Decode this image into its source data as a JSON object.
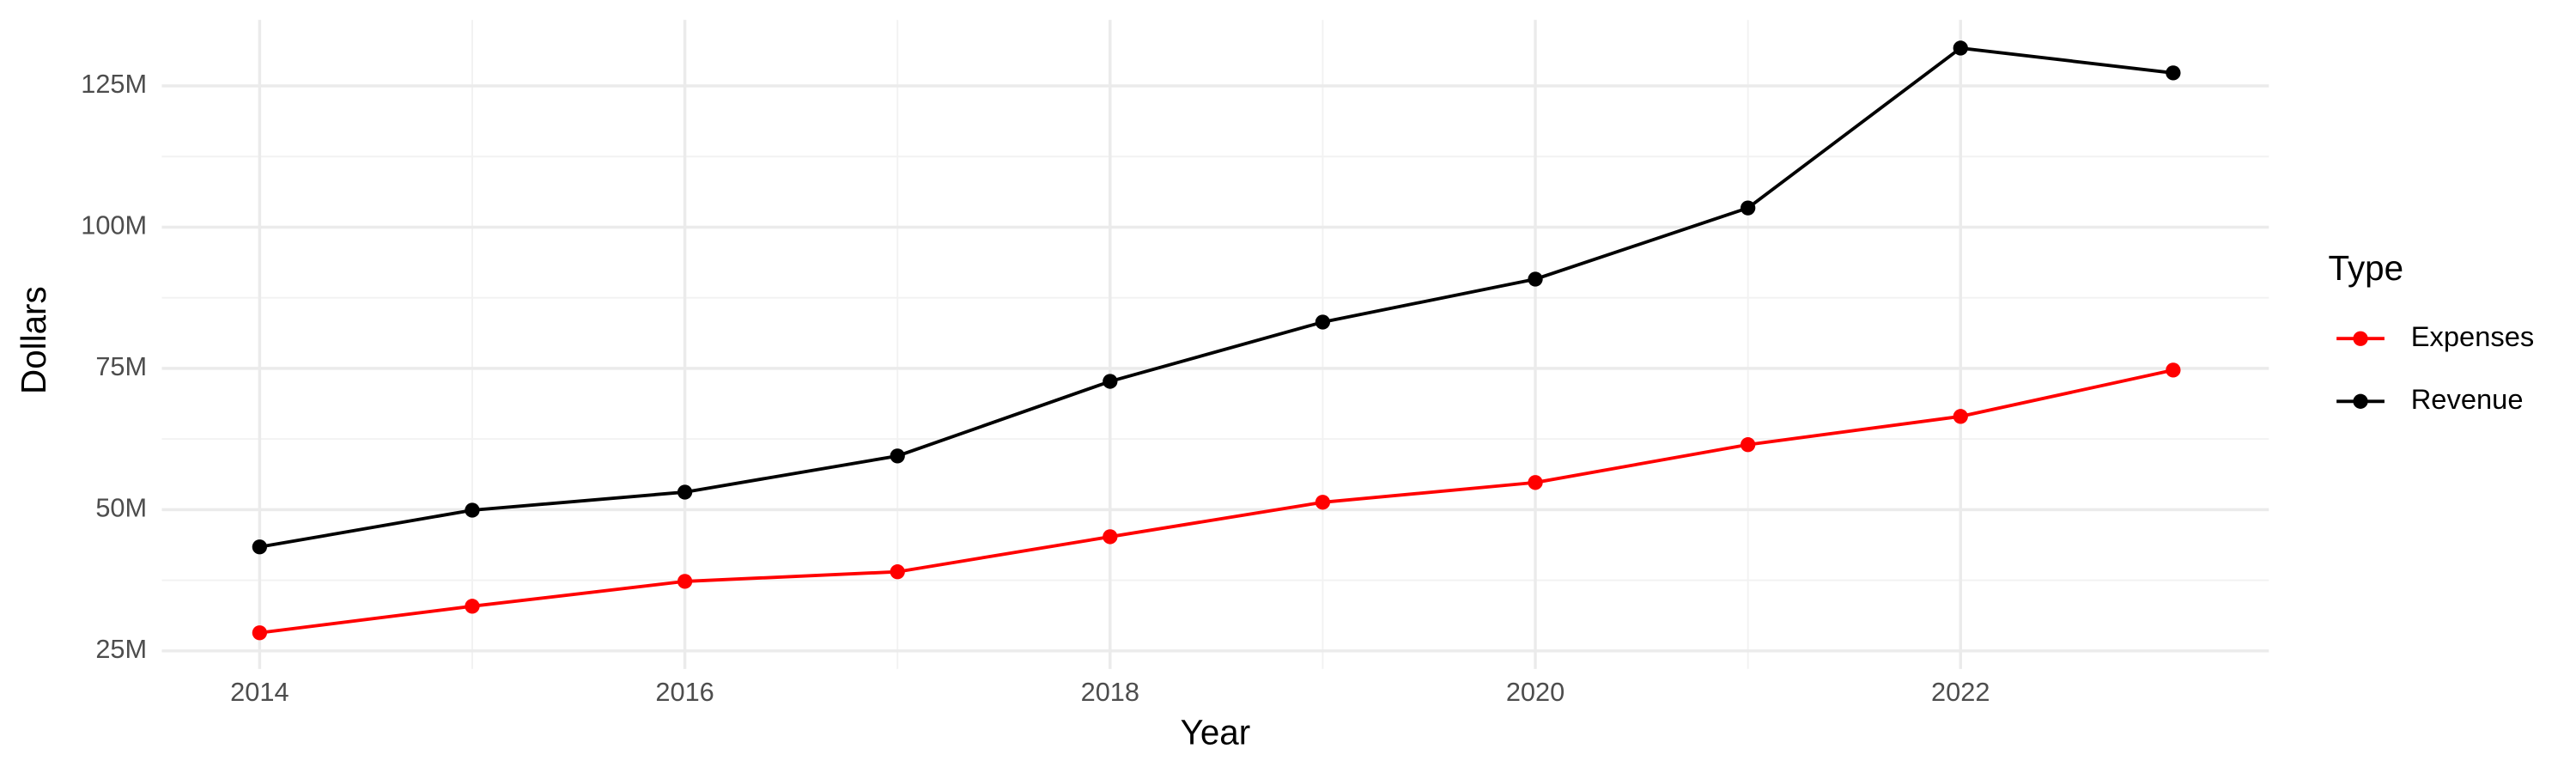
{
  "chart_data": {
    "type": "line",
    "x_label": "Year",
    "y_label": "Dollars",
    "legend_title": "Type",
    "legend_position": "right",
    "grid": true,
    "x": [
      2014,
      2015,
      2016,
      2017,
      2018,
      2019,
      2020,
      2021,
      2022,
      2023
    ],
    "series": [
      {
        "name": "Expenses",
        "color": "#ff0000",
        "values": [
          28200000,
          32900000,
          37300000,
          39000000,
          45200000,
          51300000,
          54800000,
          61500000,
          66500000,
          74700000
        ]
      },
      {
        "name": "Revenue",
        "color": "#000000",
        "values": [
          43400000,
          49900000,
          53100000,
          59500000,
          72700000,
          83200000,
          90800000,
          103400000,
          131700000,
          127300000
        ]
      }
    ],
    "xlim": [
      2013.54,
      2023.45
    ],
    "xticks": [
      2014,
      2016,
      2018,
      2020,
      2022
    ],
    "ylim": [
      21800000,
      136700000
    ],
    "yticks": [
      {
        "value": 25000000,
        "label": "25M"
      },
      {
        "value": 50000000,
        "label": "50M"
      },
      {
        "value": 75000000,
        "label": "75M"
      },
      {
        "value": 100000000,
        "label": "100M"
      },
      {
        "value": 125000000,
        "label": "125M"
      }
    ]
  }
}
